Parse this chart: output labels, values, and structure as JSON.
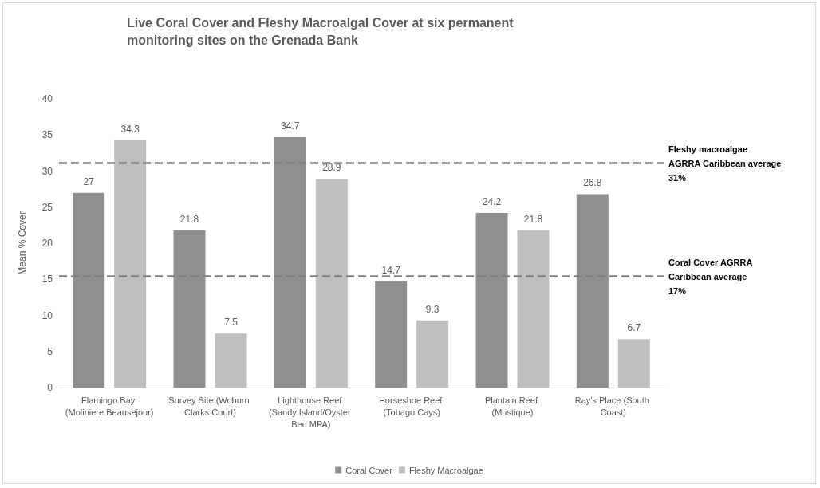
{
  "chart_data": {
    "type": "bar",
    "title": "Live Coral Cover and Fleshy Macroalgal Cover at six permanent monitoring sites on the Grenada Bank",
    "ylabel": "Mean % Cover",
    "categories": [
      "Flamingo Bay (Moliniere Beausejour)",
      "Survey Site (Woburn Clarks Court)",
      "Lighthouse Reef (Sandy Island/Oyster Bed MPA)",
      "Horseshoe Reef (Tobago Cays)",
      "Plantain Reef (Mustique)",
      "Ray's Place (South Coast)"
    ],
    "series": [
      {
        "name": "Coral Cover",
        "color": "#8f8f8f",
        "values": [
          27,
          21.8,
          34.7,
          14.7,
          24.2,
          26.8
        ]
      },
      {
        "name": "Fleshy Macroalgae",
        "color": "#bfbfbf",
        "values": [
          34.3,
          7.5,
          28.9,
          9.3,
          21.8,
          6.7
        ]
      }
    ],
    "ylim": [
      0,
      40
    ],
    "yticks": [
      0,
      5,
      10,
      15,
      20,
      25,
      30,
      35,
      40
    ],
    "ref_lines": [
      {
        "axis": "y",
        "value": 31.1,
        "label": "Fleshy macroalgae\nAGRRA Caribbean average\n31%",
        "color": "#808080",
        "line_style": "dashed"
      },
      {
        "axis": "y",
        "value": 15.4,
        "label": "Coral Cover AGRRA\nCaribbean average\n17%",
        "color": "#808080",
        "line_style": "dashed"
      }
    ],
    "data_labels": true,
    "grid": false,
    "legend": "bottom"
  }
}
